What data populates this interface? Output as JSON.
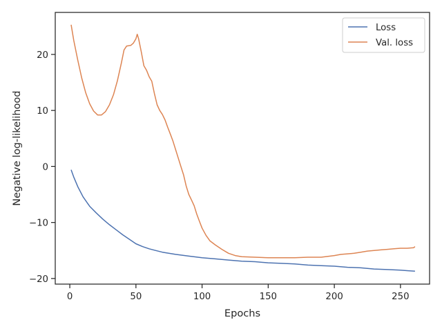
{
  "chart_data": {
    "type": "line",
    "title": "",
    "xlabel": "Epochs",
    "ylabel": "Negative log-likelihood",
    "xlim": [
      -11,
      272
    ],
    "ylim": [
      -21,
      27.5
    ],
    "xticks": [
      0,
      50,
      100,
      150,
      200,
      250
    ],
    "yticks": [
      -20,
      -10,
      0,
      10,
      20
    ],
    "xtick_labels": [
      "0",
      "50",
      "100",
      "150",
      "200",
      "250"
    ],
    "ytick_labels": [
      "−20",
      "−10",
      "0",
      "10",
      "20"
    ],
    "grid": false,
    "legend_position": "top-right",
    "series": [
      {
        "name": "Loss",
        "color": "#4c72b0",
        "points": [
          [
            1,
            -0.6
          ],
          [
            3,
            -1.9
          ],
          [
            6,
            -3.6
          ],
          [
            10,
            -5.4
          ],
          [
            15,
            -7.1
          ],
          [
            20,
            -8.3
          ],
          [
            25,
            -9.4
          ],
          [
            30,
            -10.4
          ],
          [
            35,
            -11.3
          ],
          [
            40,
            -12.2
          ],
          [
            45,
            -13.0
          ],
          [
            50,
            -13.8
          ],
          [
            55,
            -14.3
          ],
          [
            60,
            -14.7
          ],
          [
            65,
            -15.0
          ],
          [
            70,
            -15.3
          ],
          [
            80,
            -15.7
          ],
          [
            90,
            -16.0
          ],
          [
            100,
            -16.3
          ],
          [
            110,
            -16.5
          ],
          [
            120,
            -16.7
          ],
          [
            130,
            -16.9
          ],
          [
            140,
            -17.0
          ],
          [
            150,
            -17.2
          ],
          [
            160,
            -17.3
          ],
          [
            170,
            -17.4
          ],
          [
            180,
            -17.6
          ],
          [
            190,
            -17.7
          ],
          [
            200,
            -17.8
          ],
          [
            210,
            -18.0
          ],
          [
            220,
            -18.1
          ],
          [
            230,
            -18.3
          ],
          [
            240,
            -18.4
          ],
          [
            250,
            -18.5
          ],
          [
            255,
            -18.6
          ],
          [
            261,
            -18.7
          ]
        ]
      },
      {
        "name": "Val. loss",
        "color": "#dd8452",
        "points": [
          [
            1,
            25.3
          ],
          [
            3,
            22.5
          ],
          [
            6,
            19.0
          ],
          [
            9,
            15.8
          ],
          [
            12,
            13.2
          ],
          [
            15,
            11.2
          ],
          [
            18,
            9.9
          ],
          [
            21,
            9.2
          ],
          [
            24,
            9.2
          ],
          [
            27,
            9.8
          ],
          [
            30,
            11.0
          ],
          [
            33,
            12.8
          ],
          [
            36,
            15.3
          ],
          [
            39,
            18.5
          ],
          [
            41,
            20.8
          ],
          [
            43,
            21.5
          ],
          [
            46,
            21.6
          ],
          [
            48,
            22.0
          ],
          [
            50,
            22.8
          ],
          [
            51,
            23.6
          ],
          [
            52,
            22.8
          ],
          [
            54,
            20.5
          ],
          [
            56,
            18.0
          ],
          [
            58,
            17.2
          ],
          [
            60,
            16.0
          ],
          [
            62,
            15.2
          ],
          [
            64,
            13.0
          ],
          [
            66,
            11.0
          ],
          [
            68,
            10.0
          ],
          [
            70,
            9.3
          ],
          [
            72,
            8.3
          ],
          [
            74,
            7.0
          ],
          [
            76,
            5.8
          ],
          [
            78,
            4.5
          ],
          [
            80,
            3.0
          ],
          [
            82,
            1.5
          ],
          [
            84,
            0.0
          ],
          [
            86,
            -1.5
          ],
          [
            88,
            -3.5
          ],
          [
            90,
            -5.0
          ],
          [
            92,
            -6.0
          ],
          [
            94,
            -7.0
          ],
          [
            96,
            -8.5
          ],
          [
            98,
            -9.8
          ],
          [
            100,
            -11.0
          ],
          [
            103,
            -12.3
          ],
          [
            106,
            -13.3
          ],
          [
            110,
            -14.0
          ],
          [
            115,
            -14.8
          ],
          [
            120,
            -15.5
          ],
          [
            125,
            -15.9
          ],
          [
            130,
            -16.1
          ],
          [
            140,
            -16.2
          ],
          [
            150,
            -16.3
          ],
          [
            160,
            -16.3
          ],
          [
            170,
            -16.3
          ],
          [
            180,
            -16.2
          ],
          [
            190,
            -16.2
          ],
          [
            200,
            -15.9
          ],
          [
            205,
            -15.7
          ],
          [
            210,
            -15.6
          ],
          [
            215,
            -15.5
          ],
          [
            220,
            -15.3
          ],
          [
            225,
            -15.1
          ],
          [
            230,
            -15.0
          ],
          [
            235,
            -14.9
          ],
          [
            240,
            -14.8
          ],
          [
            245,
            -14.7
          ],
          [
            250,
            -14.6
          ],
          [
            255,
            -14.6
          ],
          [
            260,
            -14.5
          ],
          [
            261,
            -14.3
          ]
        ]
      }
    ]
  }
}
